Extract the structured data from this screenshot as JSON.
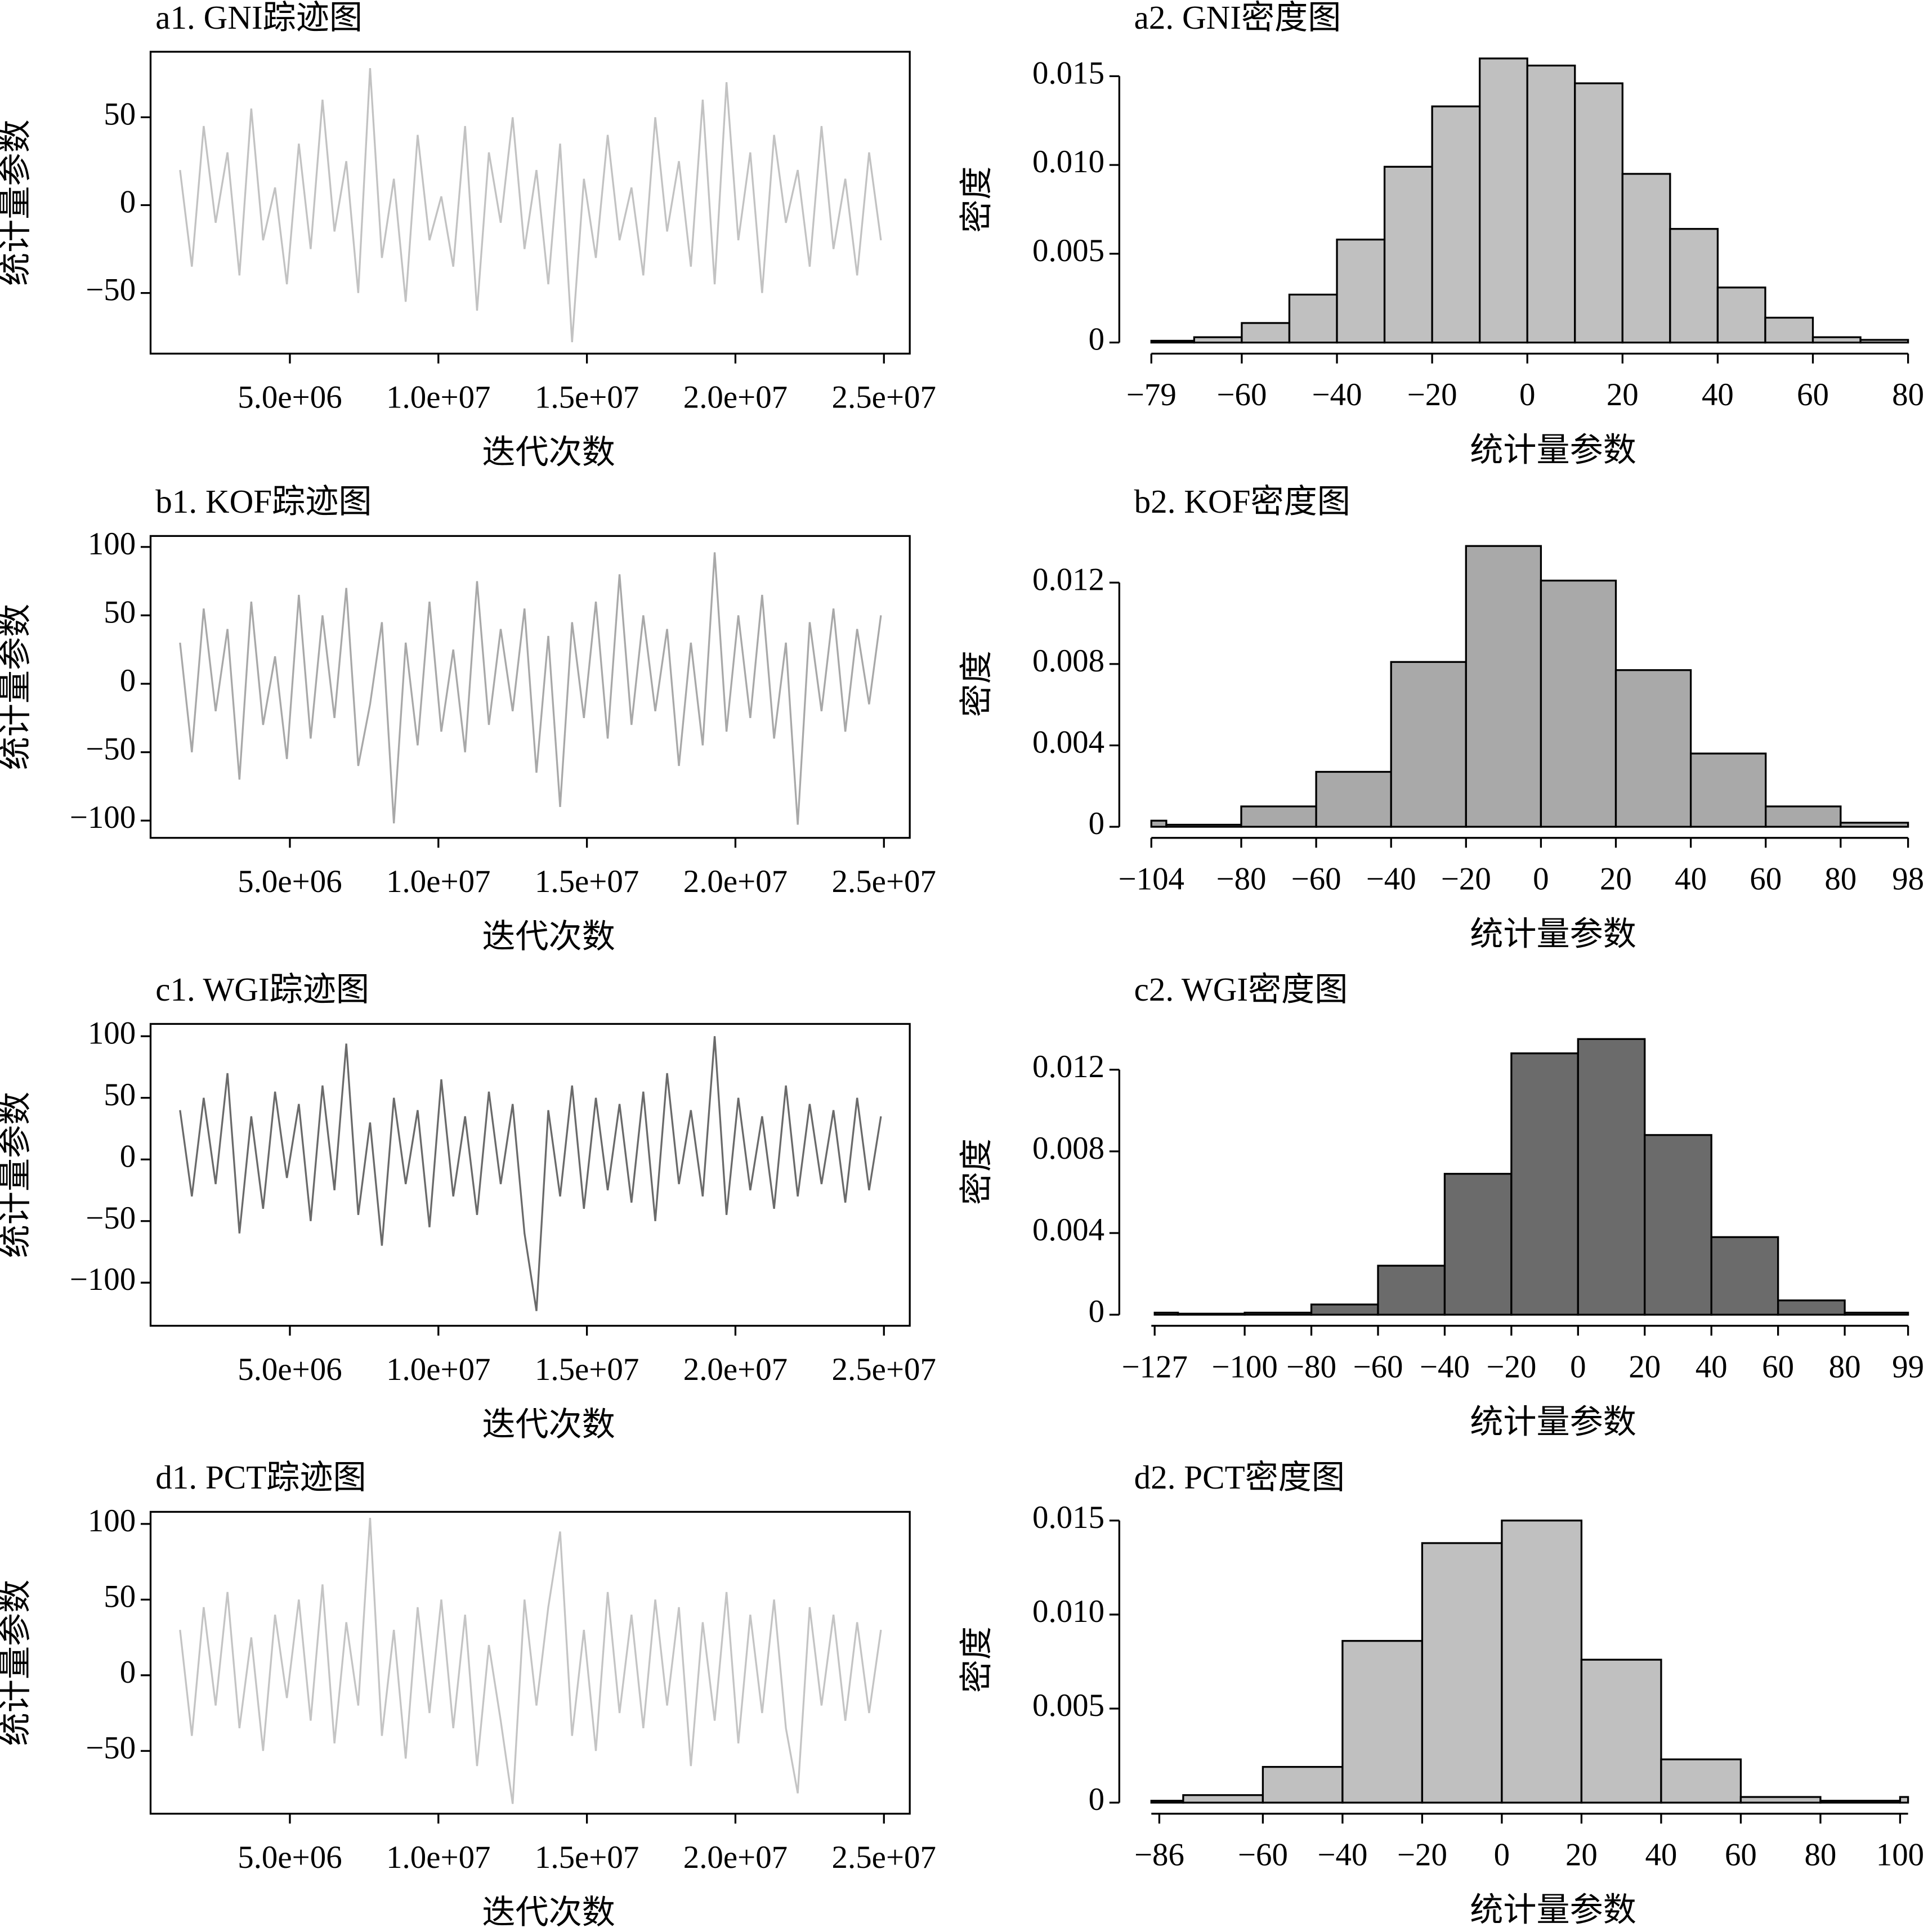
{
  "chart_data": [
    {
      "type": "line",
      "title": "a1. GNI踪迹图",
      "x_label": "迭代次数",
      "y_label": "统计量参数",
      "color": "#c2c2c2",
      "x": [
        1300000,
        1700000,
        2100000,
        2500000,
        2900000,
        3300000,
        3700000,
        4100000,
        4500000,
        4900000,
        5300000,
        5700000,
        6100000,
        6500000,
        6900000,
        7300000,
        7700000,
        8100000,
        8500000,
        8900000,
        9300000,
        9700000,
        10100000,
        10500000,
        10900000,
        11300000,
        11700000,
        12100000,
        12500000,
        12900000,
        13300000,
        13700000,
        14100000,
        14500000,
        14900000,
        15300000,
        15700000,
        16100000,
        16500000,
        16900000,
        17300000,
        17700000,
        18100000,
        18500000,
        18900000,
        19300000,
        19700000,
        20100000,
        20500000,
        20900000,
        21300000,
        21700000,
        22100000,
        22500000,
        22900000,
        23300000,
        23700000,
        24100000,
        24500000,
        24900000
      ],
      "values": [
        20,
        -35,
        45,
        -10,
        30,
        -40,
        55,
        -20,
        10,
        -45,
        35,
        -25,
        60,
        -15,
        25,
        -50,
        78,
        -30,
        15,
        -55,
        40,
        -20,
        5,
        -35,
        45,
        -60,
        30,
        -10,
        50,
        -25,
        20,
        -45,
        35,
        -78,
        15,
        -30,
        40,
        -20,
        10,
        -40,
        50,
        -15,
        25,
        -35,
        60,
        -45,
        70,
        -20,
        30,
        -50,
        40,
        -10,
        20,
        -35,
        45,
        -25,
        15,
        -40,
        30,
        -20
      ],
      "xlim": [
        310000,
        25870000
      ],
      "ylim": [
        -84.5,
        87.3
      ],
      "xticks": [
        {
          "value": 5000000,
          "label": "5.0e+06"
        },
        {
          "value": 10000000,
          "label": "1.0e+07"
        },
        {
          "value": 15000000,
          "label": "1.5e+07"
        },
        {
          "value": 20000000,
          "label": "2.0e+07"
        },
        {
          "value": 25000000,
          "label": "2.5e+07"
        }
      ],
      "yticks": [
        {
          "value": -50,
          "label": "−50"
        },
        0,
        50
      ]
    },
    {
      "type": "histogram",
      "title": "a2. GNI密度图",
      "x_label": "统计量参数",
      "y_label": "密度",
      "color": "#c0c0c0",
      "bins": [
        -79,
        -70,
        -60,
        -50,
        -40,
        -30,
        -20,
        -10,
        0,
        10,
        20,
        30,
        40,
        50,
        60,
        70,
        80
      ],
      "values": [
        0.0001,
        0.0003,
        0.0011,
        0.0027,
        0.0058,
        0.0099,
        0.0133,
        0.016,
        0.0156,
        0.0146,
        0.0095,
        0.0064,
        0.0031,
        0.0014,
        0.0003,
        0.00015
      ],
      "xlim": [
        -79,
        80
      ],
      "ylim": [
        0,
        0.0161
      ],
      "xticks": [
        {
          "value": -79,
          "label": "−79"
        },
        {
          "value": -60,
          "label": "−60"
        },
        {
          "value": -40,
          "label": "−40"
        },
        {
          "value": -20,
          "label": "−20"
        },
        0,
        20,
        40,
        60,
        80
      ],
      "yticks": [
        0,
        0.005,
        {
          "value": 0.01,
          "label": "0.010"
        },
        0.015
      ]
    },
    {
      "type": "line",
      "title": "b1. KOF踪迹图",
      "x_label": "迭代次数",
      "y_label": "统计量参数",
      "color": "#a8a8a8",
      "x": [
        1300000,
        1700000,
        2100000,
        2500000,
        2900000,
        3300000,
        3700000,
        4100000,
        4500000,
        4900000,
        5300000,
        5700000,
        6100000,
        6500000,
        6900000,
        7300000,
        7700000,
        8100000,
        8500000,
        8900000,
        9300000,
        9700000,
        10100000,
        10500000,
        10900000,
        11300000,
        11700000,
        12100000,
        12500000,
        12900000,
        13300000,
        13700000,
        14100000,
        14500000,
        14900000,
        15300000,
        15700000,
        16100000,
        16500000,
        16900000,
        17300000,
        17700000,
        18100000,
        18500000,
        18900000,
        19300000,
        19700000,
        20100000,
        20500000,
        20900000,
        21300000,
        21700000,
        22100000,
        22500000,
        22900000,
        23300000,
        23700000,
        24100000,
        24500000,
        24900000
      ],
      "values": [
        30,
        -50,
        55,
        -20,
        40,
        -70,
        60,
        -30,
        20,
        -55,
        65,
        -40,
        50,
        -25,
        70,
        -60,
        -15,
        45,
        -102,
        30,
        -45,
        60,
        -35,
        25,
        -50,
        75,
        -30,
        40,
        -20,
        55,
        -65,
        35,
        -90,
        45,
        -25,
        60,
        -40,
        80,
        -30,
        50,
        -20,
        40,
        -60,
        30,
        -45,
        96,
        -35,
        50,
        -25,
        65,
        -40,
        30,
        -103,
        45,
        -20,
        55,
        -35,
        40,
        -15,
        50
      ],
      "xlim": [
        310000,
        25870000
      ],
      "ylim": [
        -112.6,
        108
      ],
      "xticks": [
        {
          "value": 5000000,
          "label": "5.0e+06"
        },
        {
          "value": 10000000,
          "label": "1.0e+07"
        },
        {
          "value": 15000000,
          "label": "1.5e+07"
        },
        {
          "value": 20000000,
          "label": "2.0e+07"
        },
        {
          "value": 25000000,
          "label": "2.5e+07"
        }
      ],
      "yticks": [
        {
          "value": -100,
          "label": "−100"
        },
        {
          "value": -50,
          "label": "−50"
        },
        0,
        50,
        100
      ]
    },
    {
      "type": "histogram",
      "title": "b2. KOF密度图",
      "x_label": "统计量参数",
      "y_label": "密度",
      "color": "#a9a9a9",
      "bins": [
        -104,
        -100,
        -80,
        -60,
        -40,
        -20,
        0,
        20,
        40,
        60,
        80,
        98
      ],
      "values": [
        0.0003,
        0.0001,
        0.001,
        0.0027,
        0.0081,
        0.0138,
        0.0121,
        0.0077,
        0.0036,
        0.001,
        0.0002
      ],
      "xlim": [
        -104,
        98
      ],
      "ylim": [
        0,
        0.01405
      ],
      "xticks": [
        {
          "value": -104,
          "label": "−104"
        },
        {
          "value": -80,
          "label": "−80"
        },
        {
          "value": -60,
          "label": "−60"
        },
        {
          "value": -40,
          "label": "−40"
        },
        {
          "value": -20,
          "label": "−20"
        },
        0,
        20,
        40,
        60,
        80,
        98
      ],
      "yticks": [
        0,
        0.004,
        0.008,
        0.012
      ]
    },
    {
      "type": "line",
      "title": "c1. WGI踪迹图",
      "x_label": "迭代次数",
      "y_label": "统计量参数",
      "color": "#6a6a6a",
      "x": [
        1300000,
        1700000,
        2100000,
        2500000,
        2900000,
        3300000,
        3700000,
        4100000,
        4500000,
        4900000,
        5300000,
        5700000,
        6100000,
        6500000,
        6900000,
        7300000,
        7700000,
        8100000,
        8500000,
        8900000,
        9300000,
        9700000,
        10100000,
        10500000,
        10900000,
        11300000,
        11700000,
        12100000,
        12500000,
        12900000,
        13300000,
        13700000,
        14100000,
        14500000,
        14900000,
        15300000,
        15700000,
        16100000,
        16500000,
        16900000,
        17300000,
        17700000,
        18100000,
        18500000,
        18900000,
        19300000,
        19700000,
        20100000,
        20500000,
        20900000,
        21300000,
        21700000,
        22100000,
        22500000,
        22900000,
        23300000,
        23700000,
        24100000,
        24500000,
        24900000
      ],
      "values": [
        40,
        -30,
        50,
        -20,
        70,
        -60,
        35,
        -40,
        55,
        -15,
        45,
        -50,
        60,
        -25,
        94,
        -45,
        30,
        -70,
        50,
        -20,
        40,
        -55,
        65,
        -30,
        35,
        -45,
        55,
        -20,
        45,
        -60,
        -123,
        40,
        -30,
        60,
        -40,
        50,
        -25,
        45,
        -35,
        55,
        -50,
        70,
        -20,
        40,
        -30,
        100,
        -45,
        50,
        -25,
        35,
        -40,
        60,
        -30,
        45,
        -20,
        40,
        -35,
        50,
        -25,
        35
      ],
      "xlim": [
        310000,
        25870000
      ],
      "ylim": [
        -135,
        110
      ],
      "xticks": [
        {
          "value": 5000000,
          "label": "5.0e+06"
        },
        {
          "value": 10000000,
          "label": "1.0e+07"
        },
        {
          "value": 15000000,
          "label": "1.5e+07"
        },
        {
          "value": 20000000,
          "label": "2.0e+07"
        },
        {
          "value": 25000000,
          "label": "2.5e+07"
        }
      ],
      "yticks": [
        {
          "value": -100,
          "label": "−100"
        },
        {
          "value": -50,
          "label": "−50"
        },
        0,
        50,
        100
      ]
    },
    {
      "type": "histogram",
      "title": "c2. WGI密度图",
      "x_label": "统计量参数",
      "y_label": "密度",
      "color": "#6b6b6b",
      "bins": [
        -127,
        -120,
        -100,
        -80,
        -60,
        -40,
        -20,
        0,
        20,
        40,
        60,
        80,
        99
      ],
      "values": [
        0.0001,
        5e-05,
        0.0001,
        0.0005,
        0.0024,
        0.0069,
        0.0128,
        0.0135,
        0.0088,
        0.0038,
        0.0007,
        0.0001
      ],
      "xlim": [
        -128,
        99
      ],
      "ylim": [
        0,
        0.014
      ],
      "xticks": [
        {
          "value": -127,
          "label": "−127"
        },
        {
          "value": -100,
          "label": "−100"
        },
        {
          "value": -80,
          "label": "−80"
        },
        {
          "value": -60,
          "label": "−60"
        },
        {
          "value": -40,
          "label": "−40"
        },
        {
          "value": -20,
          "label": "−20"
        },
        0,
        20,
        40,
        60,
        80,
        99
      ],
      "yticks": [
        0,
        0.004,
        0.008,
        0.012
      ]
    },
    {
      "type": "line",
      "title": "d1. PCT踪迹图",
      "x_label": "迭代次数",
      "y_label": "统计量参数",
      "color": "#c4c4c4",
      "x": [
        1300000,
        1700000,
        2100000,
        2500000,
        2900000,
        3300000,
        3700000,
        4100000,
        4500000,
        4900000,
        5300000,
        5700000,
        6100000,
        6500000,
        6900000,
        7300000,
        7700000,
        8100000,
        8500000,
        8900000,
        9300000,
        9700000,
        10100000,
        10500000,
        10900000,
        11300000,
        11700000,
        12100000,
        12500000,
        12900000,
        13300000,
        13700000,
        14100000,
        14500000,
        14900000,
        15300000,
        15700000,
        16100000,
        16500000,
        16900000,
        17300000,
        17700000,
        18100000,
        18500000,
        18900000,
        19300000,
        19700000,
        20100000,
        20500000,
        20900000,
        21300000,
        21700000,
        22100000,
        22500000,
        22900000,
        23300000,
        23700000,
        24100000,
        24500000,
        24900000
      ],
      "values": [
        30,
        -40,
        45,
        -20,
        55,
        -35,
        25,
        -50,
        40,
        -15,
        50,
        -30,
        60,
        -45,
        35,
        -20,
        104,
        -40,
        30,
        -55,
        45,
        -25,
        50,
        -35,
        40,
        -60,
        20,
        -30,
        -85,
        50,
        -20,
        45,
        95,
        -40,
        30,
        -50,
        55,
        -25,
        40,
        -35,
        50,
        -20,
        45,
        -60,
        35,
        -30,
        55,
        -45,
        40,
        -25,
        50,
        -35,
        -78,
        45,
        -20,
        40,
        -30,
        35,
        -25,
        30
      ],
      "xlim": [
        310000,
        25870000
      ],
      "ylim": [
        -91.5,
        108
      ],
      "xticks": [
        {
          "value": 5000000,
          "label": "5.0e+06"
        },
        {
          "value": 10000000,
          "label": "1.0e+07"
        },
        {
          "value": 15000000,
          "label": "1.5e+07"
        },
        {
          "value": 20000000,
          "label": "2.0e+07"
        },
        {
          "value": 25000000,
          "label": "2.5e+07"
        }
      ],
      "yticks": [
        {
          "value": -50,
          "label": "−50"
        },
        0,
        50,
        100
      ]
    },
    {
      "type": "histogram",
      "title": "d2. PCT密度图",
      "x_label": "统计量参数",
      "y_label": "密度",
      "color": "#c0c0c0",
      "bins": [
        -88,
        -80,
        -60,
        -40,
        -20,
        0,
        20,
        40,
        60,
        80,
        100,
        102
      ],
      "values": [
        0.0001,
        0.0004,
        0.0019,
        0.0086,
        0.0138,
        0.015,
        0.0076,
        0.0023,
        0.0003,
        0.0001,
        0.0003
      ],
      "xlim": [
        -88,
        102
      ],
      "ylim": [
        0,
        0.0152
      ],
      "xticks": [
        {
          "value": -86,
          "label": "−86"
        },
        {
          "value": -60,
          "label": "−60"
        },
        {
          "value": -40,
          "label": "−40"
        },
        {
          "value": -20,
          "label": "−20"
        },
        0,
        20,
        40,
        60,
        80,
        100
      ],
      "yticks": [
        0,
        0.005,
        {
          "value": 0.01,
          "label": "0.010"
        },
        0.015
      ]
    }
  ]
}
